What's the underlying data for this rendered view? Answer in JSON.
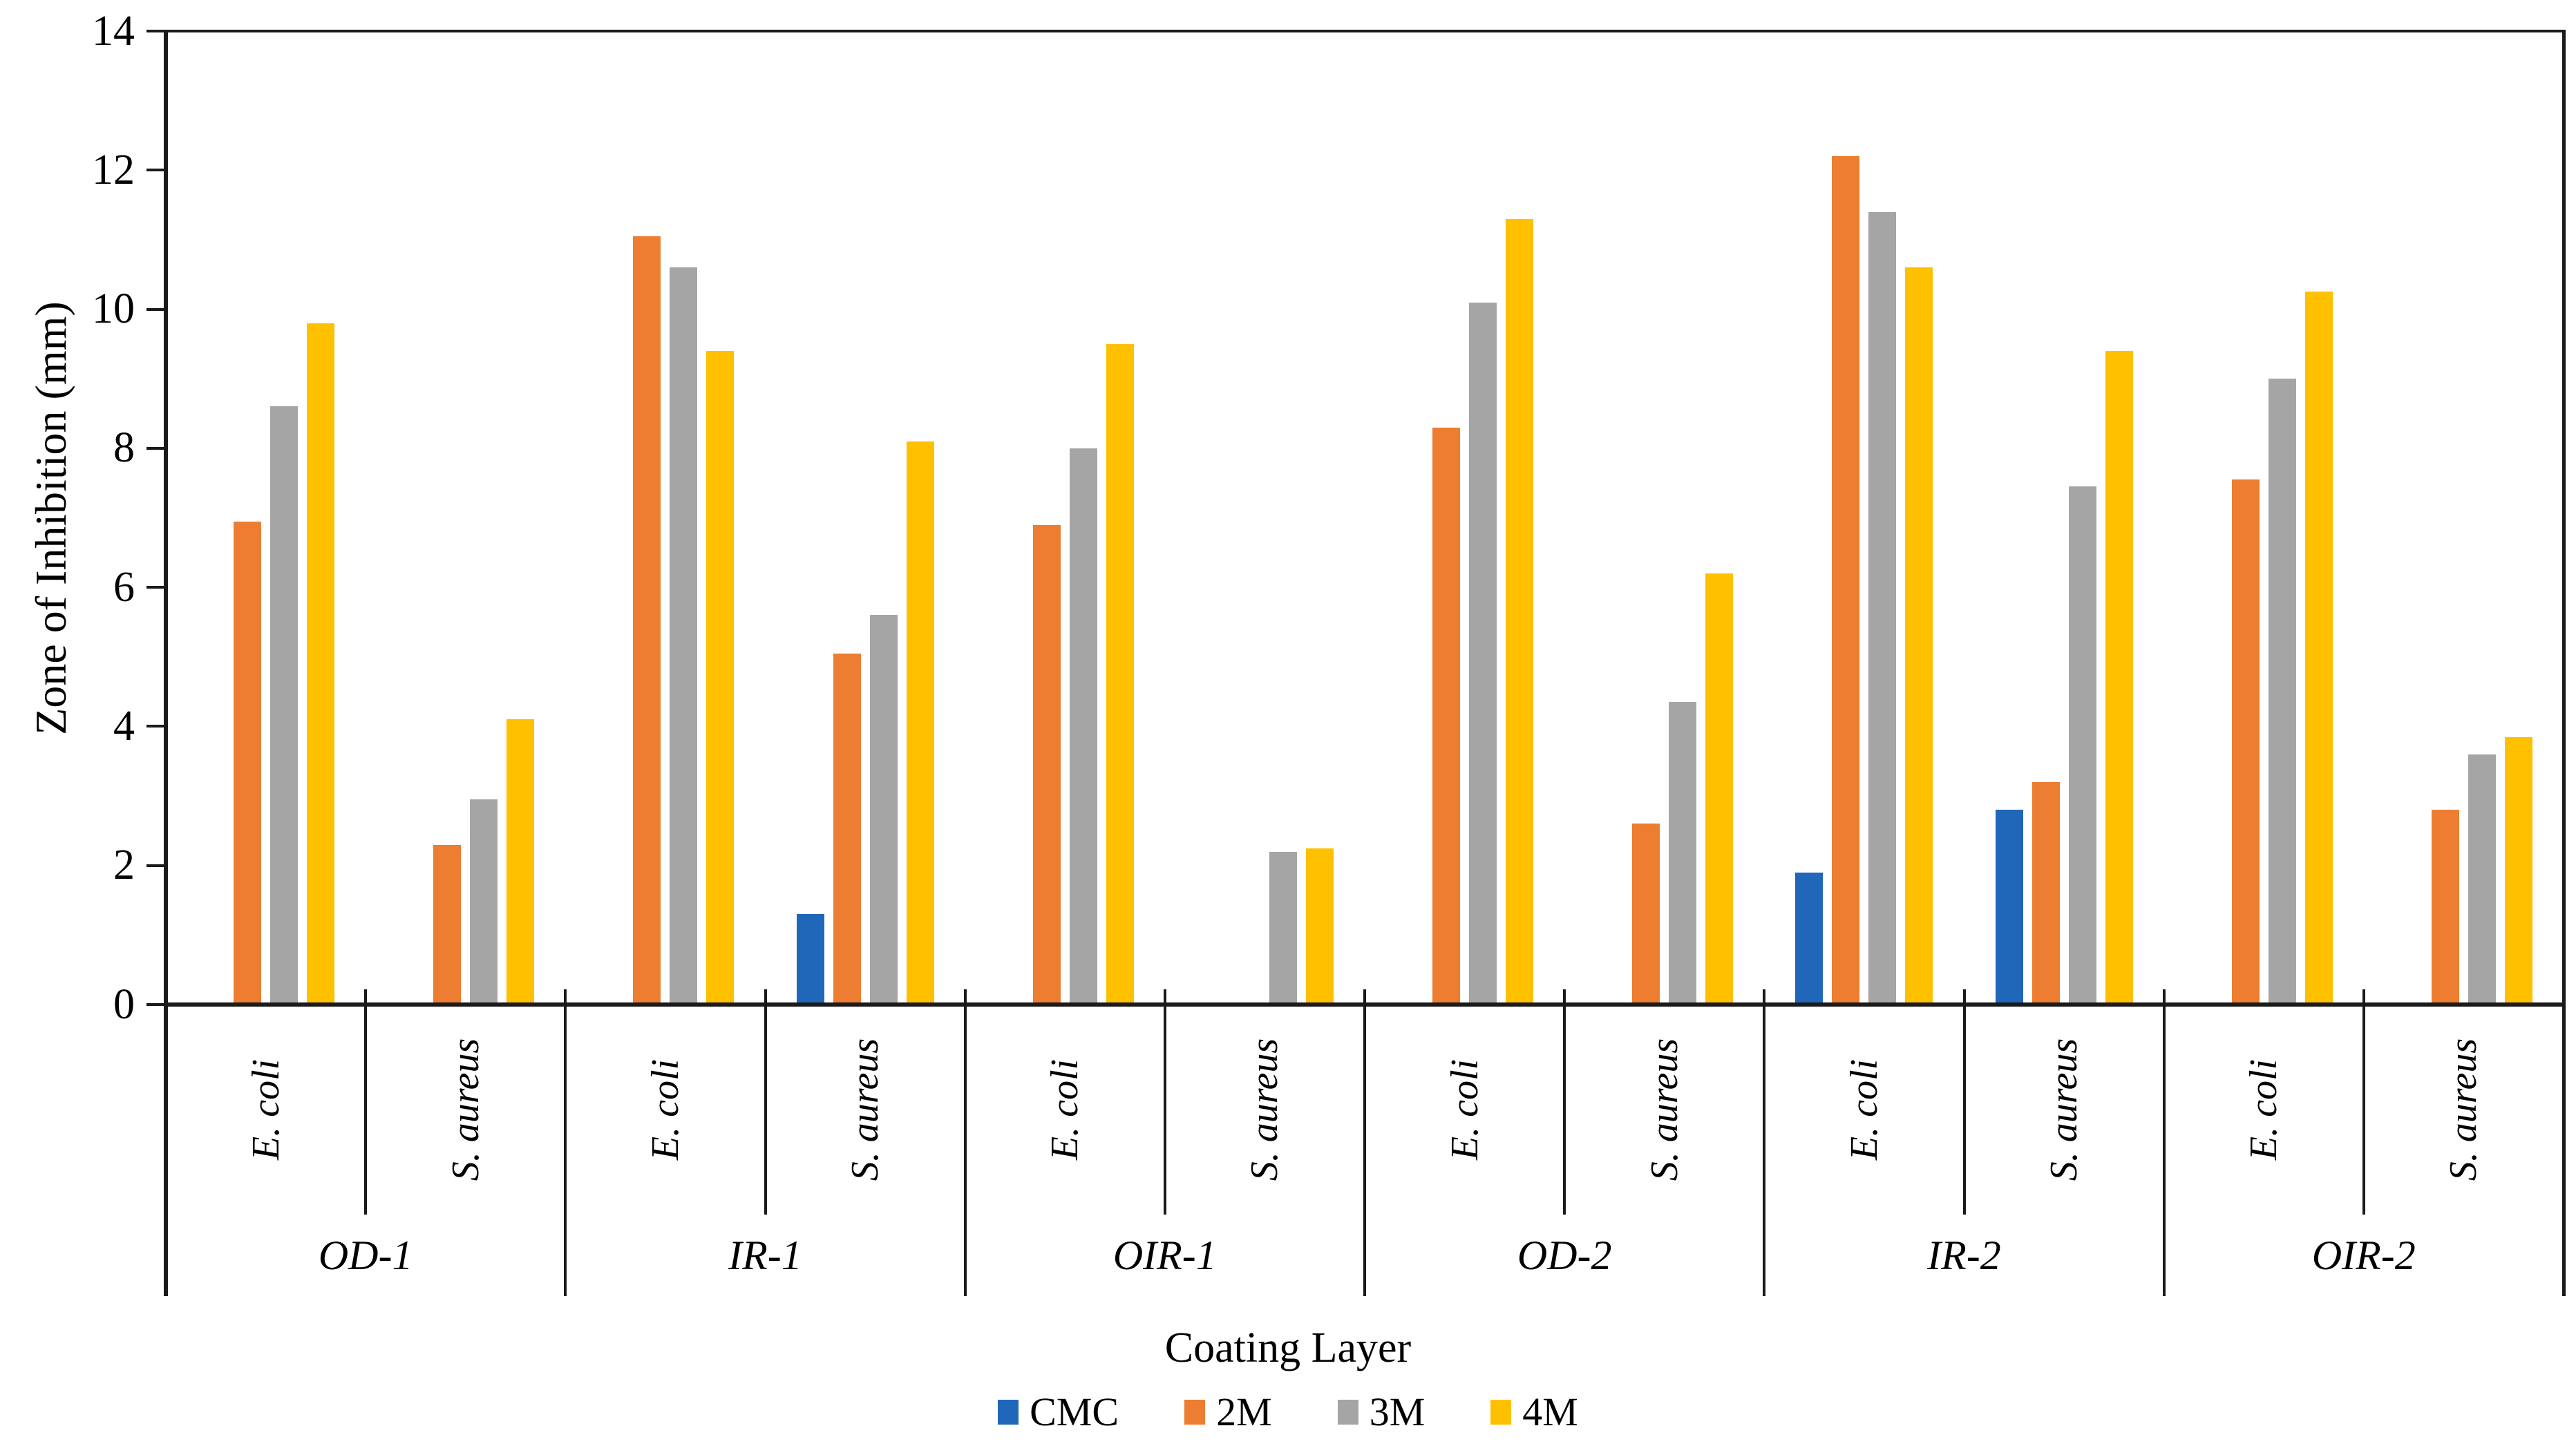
{
  "chart_data": {
    "type": "bar",
    "title": "",
    "ylabel": "Zone of Inhibition (mm)",
    "xlabel": "Coating Layer",
    "ylim": [
      0,
      14
    ],
    "yticks": [
      0,
      2,
      4,
      6,
      8,
      10,
      12,
      14
    ],
    "grid": false,
    "legend_position": "bottom",
    "series": [
      {
        "name": "CMC",
        "color": "#2066B9"
      },
      {
        "name": "2M",
        "color": "#ED7D31"
      },
      {
        "name": "3M",
        "color": "#A5A5A5"
      },
      {
        "name": "4M",
        "color": "#FFC000"
      }
    ],
    "categories": [
      {
        "group": "OD-1",
        "species": [
          {
            "label": "E. coli",
            "values": [
              0,
              6.95,
              8.6,
              9.8
            ]
          },
          {
            "label": "S. aureus",
            "values": [
              0,
              2.3,
              2.95,
              4.1
            ]
          }
        ]
      },
      {
        "group": "IR-1",
        "species": [
          {
            "label": "E. coli",
            "values": [
              0,
              11.05,
              10.6,
              9.4
            ]
          },
          {
            "label": "S. aureus",
            "values": [
              1.3,
              5.05,
              5.6,
              8.1
            ]
          }
        ]
      },
      {
        "group": "OIR-1",
        "species": [
          {
            "label": "E. coli",
            "values": [
              0,
              6.9,
              8.0,
              9.5
            ]
          },
          {
            "label": "S. aureus",
            "values": [
              0,
              0,
              2.2,
              2.25
            ]
          }
        ]
      },
      {
        "group": "OD-2",
        "species": [
          {
            "label": "E. coli",
            "values": [
              0,
              8.3,
              10.1,
              11.3
            ]
          },
          {
            "label": "S. aureus",
            "values": [
              0,
              2.6,
              4.35,
              6.2
            ]
          }
        ]
      },
      {
        "group": "IR-2",
        "species": [
          {
            "label": "E. coli",
            "values": [
              1.9,
              12.2,
              11.4,
              10.6
            ]
          },
          {
            "label": "S. aureus",
            "values": [
              2.8,
              3.2,
              7.45,
              9.4
            ]
          }
        ]
      },
      {
        "group": "OIR-2",
        "species": [
          {
            "label": "E. coli",
            "values": [
              0,
              7.55,
              9.0,
              10.25
            ]
          },
          {
            "label": "S. aureus",
            "values": [
              0,
              2.8,
              3.6,
              3.85
            ]
          }
        ]
      }
    ]
  }
}
